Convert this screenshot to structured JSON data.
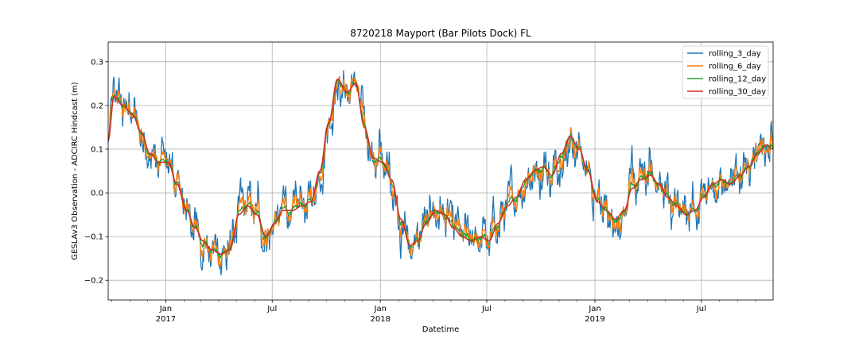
{
  "chart_data": {
    "type": "line",
    "title": "8720218 Mayport (Bar Pilots Dock) FL",
    "xlabel": "Datetime",
    "ylabel": "GESLAv3 Observation - ADCIRC Hindcast (m)",
    "x_range": [
      "2016-09-25",
      "2019-10-31"
    ],
    "ylim": [
      -0.245,
      0.345
    ],
    "grid": true,
    "legend_position": "top-right",
    "y_ticks": [
      -0.2,
      -0.1,
      0.0,
      0.1,
      0.2,
      0.3
    ],
    "y_tick_labels": [
      "−0.2",
      "−0.1",
      "0.0",
      "0.1",
      "0.2",
      "0.3"
    ],
    "x_ticks": [
      {
        "date": "2017-01-01",
        "month": "Jan",
        "year": "2017"
      },
      {
        "date": "2017-07-01",
        "month": "Jul",
        "year": ""
      },
      {
        "date": "2018-01-01",
        "month": "Jan",
        "year": "2018"
      },
      {
        "date": "2018-07-01",
        "month": "Jul",
        "year": ""
      },
      {
        "date": "2019-01-01",
        "month": "Jan",
        "year": "2019"
      },
      {
        "date": "2019-07-01",
        "month": "Jul",
        "year": ""
      }
    ],
    "series": [
      {
        "name": "rolling_3_day",
        "color": "#1f77b4",
        "noise": 0.022
      },
      {
        "name": "rolling_6_day",
        "color": "#ff7f0e",
        "noise": 0.012
      },
      {
        "name": "rolling_12_day",
        "color": "#2ca02c",
        "noise": 0.004
      },
      {
        "name": "rolling_30_day",
        "color": "#d62728",
        "noise": 0.0
      }
    ],
    "trend_points": [
      {
        "x": "2016-09-25",
        "y": 0.12
      },
      {
        "x": "2016-10-05",
        "y": 0.22
      },
      {
        "x": "2016-10-20",
        "y": 0.2
      },
      {
        "x": "2016-11-05",
        "y": 0.18
      },
      {
        "x": "2016-11-20",
        "y": 0.14
      },
      {
        "x": "2016-12-05",
        "y": 0.09
      },
      {
        "x": "2016-12-20",
        "y": 0.07
      },
      {
        "x": "2017-01-05",
        "y": 0.07
      },
      {
        "x": "2017-01-20",
        "y": 0.02
      },
      {
        "x": "2017-02-05",
        "y": -0.04
      },
      {
        "x": "2017-02-20",
        "y": -0.08
      },
      {
        "x": "2017-03-05",
        "y": -0.11
      },
      {
        "x": "2017-03-20",
        "y": -0.13
      },
      {
        "x": "2017-04-05",
        "y": -0.14
      },
      {
        "x": "2017-04-20",
        "y": -0.13
      },
      {
        "x": "2017-05-05",
        "y": -0.05
      },
      {
        "x": "2017-05-20",
        "y": -0.03
      },
      {
        "x": "2017-06-05",
        "y": -0.05
      },
      {
        "x": "2017-06-20",
        "y": -0.1
      },
      {
        "x": "2017-07-05",
        "y": -0.07
      },
      {
        "x": "2017-07-20",
        "y": -0.04
      },
      {
        "x": "2017-08-05",
        "y": -0.04
      },
      {
        "x": "2017-08-20",
        "y": -0.03
      },
      {
        "x": "2017-09-05",
        "y": -0.02
      },
      {
        "x": "2017-09-20",
        "y": 0.05
      },
      {
        "x": "2017-10-05",
        "y": 0.16
      },
      {
        "x": "2017-10-20",
        "y": 0.26
      },
      {
        "x": "2017-11-05",
        "y": 0.23
      },
      {
        "x": "2017-11-20",
        "y": 0.25
      },
      {
        "x": "2017-12-05",
        "y": 0.15
      },
      {
        "x": "2017-12-20",
        "y": 0.08
      },
      {
        "x": "2018-01-05",
        "y": 0.07
      },
      {
        "x": "2018-01-20",
        "y": 0.03
      },
      {
        "x": "2018-02-05",
        "y": -0.06
      },
      {
        "x": "2018-02-20",
        "y": -0.12
      },
      {
        "x": "2018-03-05",
        "y": -0.11
      },
      {
        "x": "2018-03-20",
        "y": -0.07
      },
      {
        "x": "2018-04-05",
        "y": -0.04
      },
      {
        "x": "2018-04-20",
        "y": -0.05
      },
      {
        "x": "2018-05-05",
        "y": -0.08
      },
      {
        "x": "2018-05-20",
        "y": -0.1
      },
      {
        "x": "2018-06-05",
        "y": -0.11
      },
      {
        "x": "2018-06-20",
        "y": -0.1
      },
      {
        "x": "2018-07-05",
        "y": -0.11
      },
      {
        "x": "2018-07-20",
        "y": -0.07
      },
      {
        "x": "2018-08-05",
        "y": -0.03
      },
      {
        "x": "2018-08-20",
        "y": -0.01
      },
      {
        "x": "2018-09-05",
        "y": 0.03
      },
      {
        "x": "2018-09-20",
        "y": 0.05
      },
      {
        "x": "2018-10-05",
        "y": 0.06
      },
      {
        "x": "2018-10-20",
        "y": 0.04
      },
      {
        "x": "2018-11-05",
        "y": 0.09
      },
      {
        "x": "2018-11-20",
        "y": 0.13
      },
      {
        "x": "2018-12-05",
        "y": 0.1
      },
      {
        "x": "2018-12-20",
        "y": 0.05
      },
      {
        "x": "2019-01-05",
        "y": -0.02
      },
      {
        "x": "2019-01-20",
        "y": -0.04
      },
      {
        "x": "2019-02-05",
        "y": -0.06
      },
      {
        "x": "2019-02-20",
        "y": -0.04
      },
      {
        "x": "2019-03-05",
        "y": 0.01
      },
      {
        "x": "2019-03-20",
        "y": 0.03
      },
      {
        "x": "2019-04-05",
        "y": 0.04
      },
      {
        "x": "2019-04-20",
        "y": 0.02
      },
      {
        "x": "2019-05-05",
        "y": -0.01
      },
      {
        "x": "2019-05-20",
        "y": -0.03
      },
      {
        "x": "2019-06-05",
        "y": -0.05
      },
      {
        "x": "2019-06-20",
        "y": -0.04
      },
      {
        "x": "2019-07-05",
        "y": -0.01
      },
      {
        "x": "2019-07-20",
        "y": 0.02
      },
      {
        "x": "2019-08-05",
        "y": 0.03
      },
      {
        "x": "2019-08-20",
        "y": 0.02
      },
      {
        "x": "2019-09-05",
        "y": 0.04
      },
      {
        "x": "2019-09-20",
        "y": 0.06
      },
      {
        "x": "2019-10-05",
        "y": 0.09
      },
      {
        "x": "2019-10-20",
        "y": 0.11
      },
      {
        "x": "2019-10-31",
        "y": 0.1
      }
    ]
  }
}
